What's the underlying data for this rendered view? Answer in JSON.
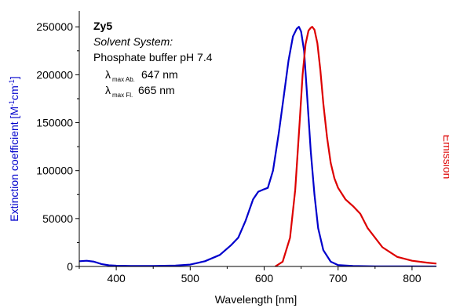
{
  "chart_data": {
    "type": "line",
    "xlabel": "Wavelength [nm]",
    "ylabel_text": "Extinction coefficient [M",
    "ylabel_sup1": "-1",
    "ylabel_mid": "cm",
    "ylabel_sup2": "-1",
    "ylabel_end": "]",
    "y2label": "Emission",
    "xlim": [
      350,
      833
    ],
    "ylim": [
      0,
      260000
    ],
    "xticks": [
      400,
      500,
      600,
      700,
      800
    ],
    "yticks": [
      0,
      50000,
      100000,
      150000,
      200000,
      250000
    ],
    "grid": false,
    "colors": {
      "absorption": "#0000cc",
      "emission": "#dd0000",
      "axis": "#000000"
    },
    "annotation": {
      "title": "Zy5",
      "solvent_label": "Solvent System:",
      "solvent": "Phosphate buffer pH 7.4",
      "abs_symbol": "λ",
      "abs_sub": "max Ab.",
      "abs_value": "647 nm",
      "fl_symbol": "λ",
      "fl_sub": "max Fl.",
      "fl_value": "665 nm"
    },
    "series": [
      {
        "key": "absorption",
        "x": [
          350,
          360,
          370,
          380,
          390,
          400,
          420,
          450,
          480,
          500,
          520,
          540,
          555,
          565,
          575,
          585,
          592,
          598,
          605,
          612,
          620,
          627,
          633,
          639,
          644,
          647,
          650,
          654,
          658,
          663,
          668,
          673,
          680,
          690,
          700,
          720,
          750,
          800,
          833
        ],
        "y": [
          5500,
          6000,
          5000,
          2500,
          1200,
          800,
          500,
          600,
          1000,
          2000,
          5500,
          12000,
          22000,
          30000,
          48000,
          70000,
          78000,
          80000,
          82000,
          100000,
          140000,
          180000,
          215000,
          240000,
          248000,
          250000,
          245000,
          225000,
          180000,
          120000,
          75000,
          40000,
          17000,
          5000,
          1500,
          500,
          200,
          100,
          0
        ]
      },
      {
        "key": "emission",
        "x": [
          615,
          625,
          635,
          642,
          648,
          652,
          656,
          660,
          663,
          665,
          668,
          672,
          676,
          680,
          685,
          690,
          695,
          700,
          710,
          720,
          730,
          740,
          760,
          780,
          800,
          820,
          833
        ],
        "y": [
          0,
          5000,
          30000,
          80000,
          150000,
          200000,
          232000,
          246000,
          249000,
          250000,
          247000,
          233000,
          205000,
          170000,
          135000,
          108000,
          92000,
          82000,
          70000,
          63000,
          55000,
          40000,
          20000,
          10000,
          6000,
          4000,
          3000
        ]
      }
    ]
  }
}
